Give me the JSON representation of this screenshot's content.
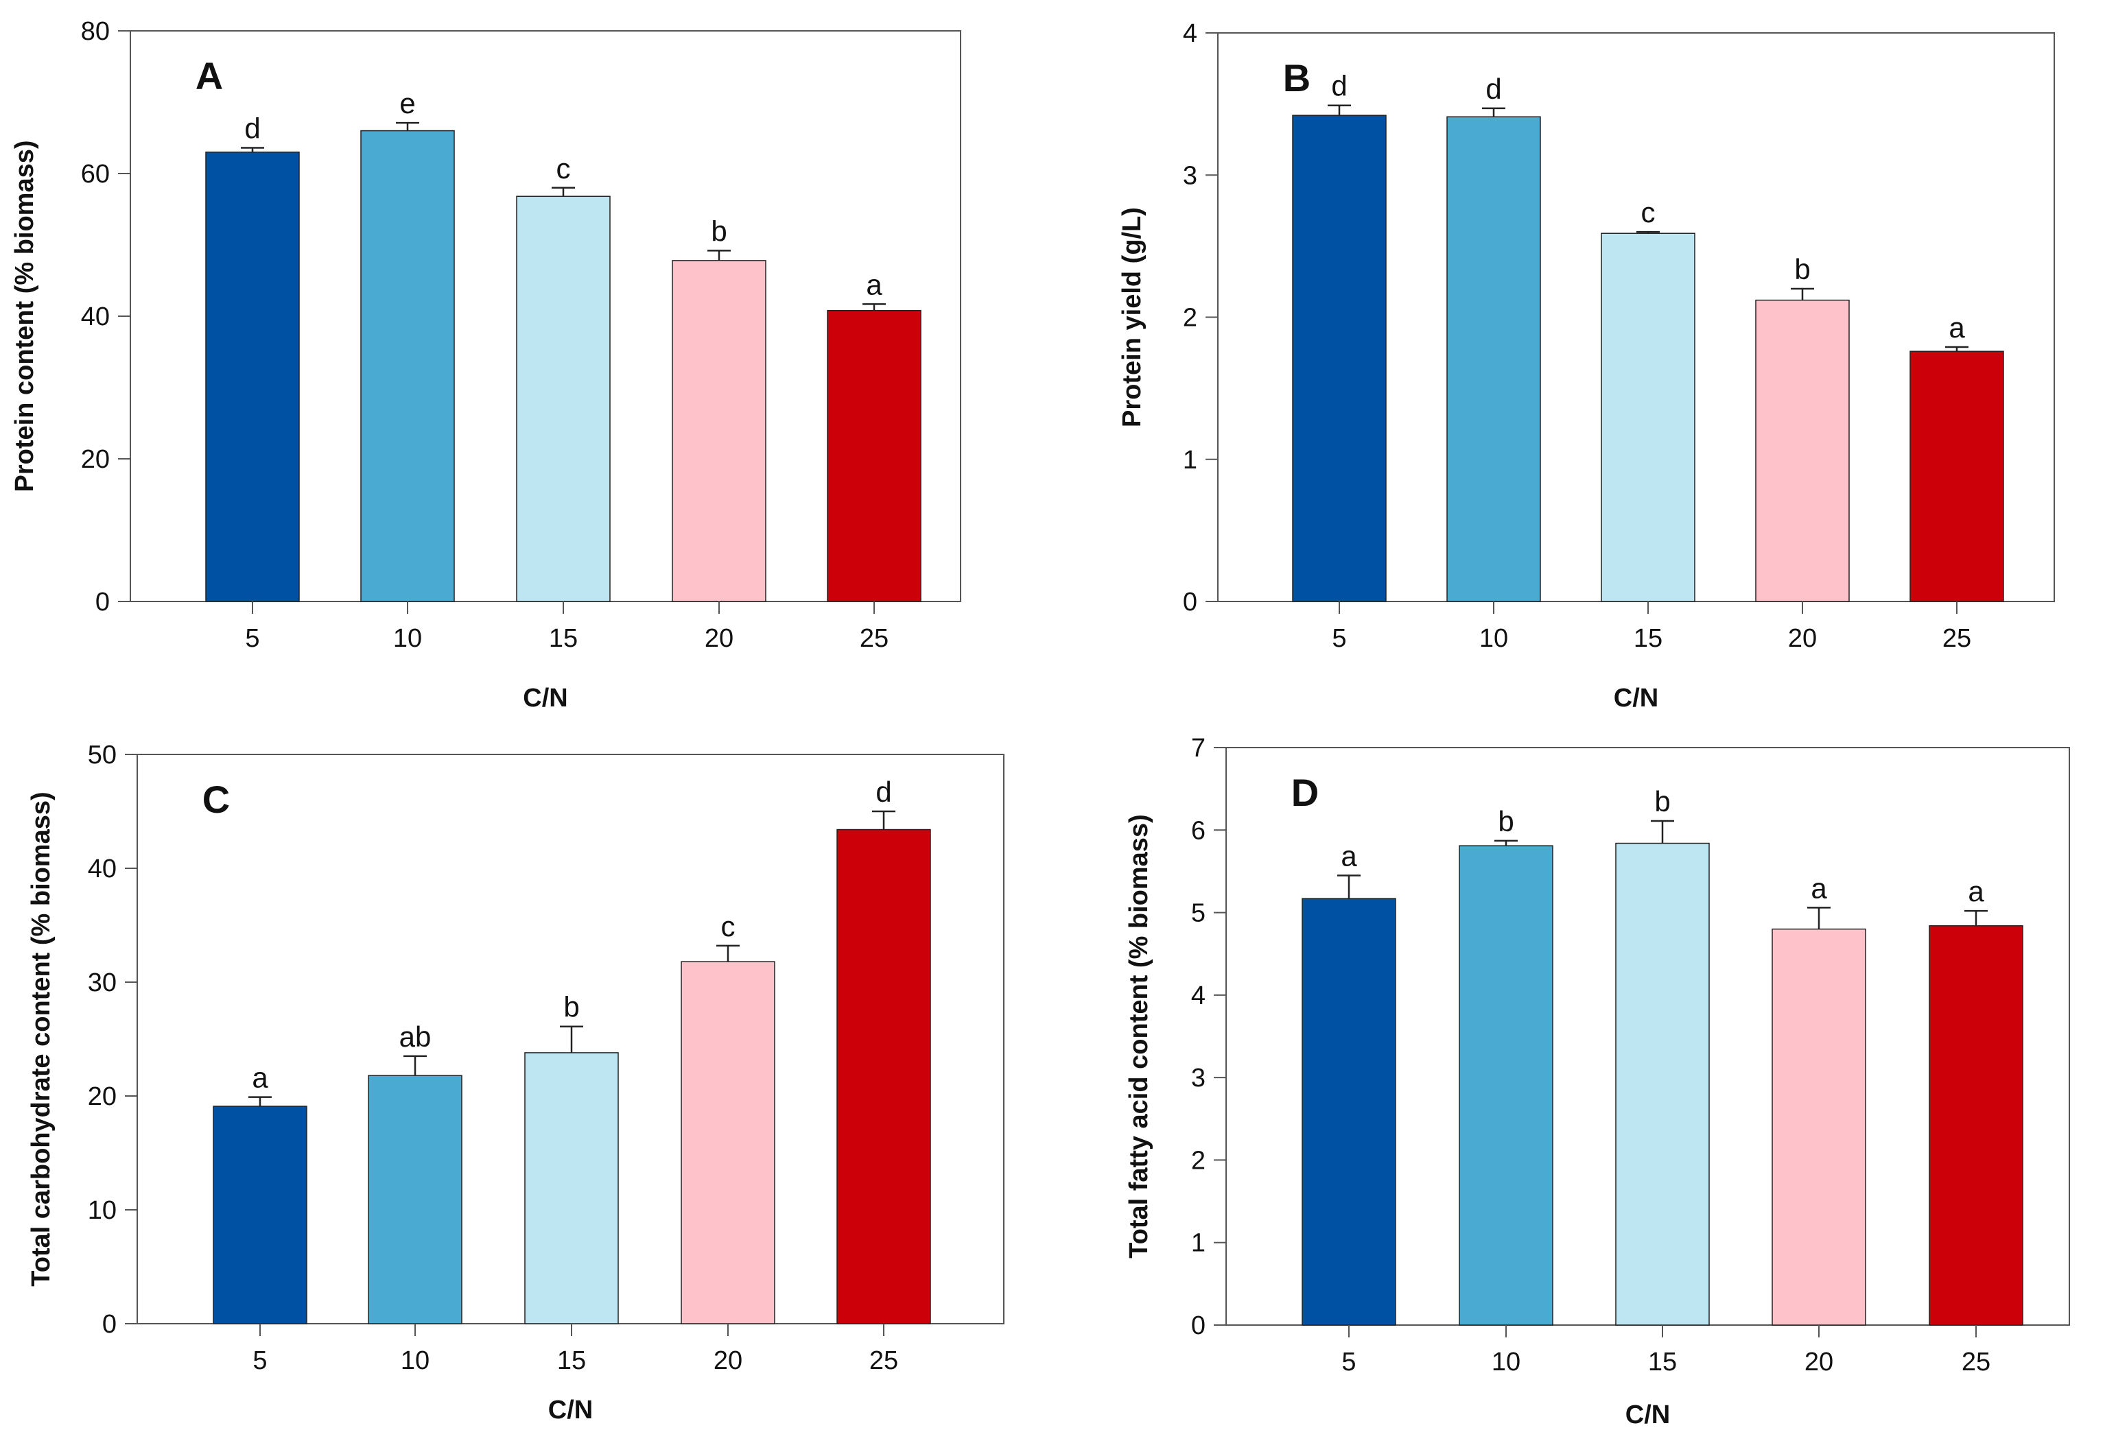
{
  "colors": {
    "bar_colors": [
      "#0050a4",
      "#4aaad2",
      "#bde6f2",
      "#fec2cb",
      "#cc0008"
    ],
    "frame": "#555555",
    "bar_edge": "#222222"
  },
  "chart_data": [
    {
      "type": "bar",
      "panel": "A",
      "categories": [
        "5",
        "10",
        "15",
        "20",
        "25"
      ],
      "values": [
        63,
        66,
        56.8,
        47.8,
        40.8
      ],
      "errors": [
        0.6,
        1.1,
        1.2,
        1.4,
        0.9
      ],
      "significance": [
        "d",
        "e",
        "c",
        "b",
        "a"
      ],
      "xlabel": "C/N",
      "ylabel": "Protein content  (% biomass)",
      "ylim": [
        0,
        80
      ],
      "yticks": [
        "0",
        "20",
        "40",
        "60",
        "80"
      ]
    },
    {
      "type": "bar",
      "panel": "B",
      "categories": [
        "5",
        "10",
        "15",
        "20",
        "25"
      ],
      "values": [
        3.42,
        3.41,
        2.59,
        2.12,
        1.76
      ],
      "errors": [
        0.07,
        0.06,
        0.01,
        0.08,
        0.03
      ],
      "significance": [
        "d",
        "d",
        "c",
        "b",
        "a"
      ],
      "xlabel": "C/N",
      "ylabel": "Protein yield (g/L)",
      "ylim": [
        0,
        4
      ],
      "yticks": [
        "0",
        "1",
        "2",
        "3",
        "4"
      ]
    },
    {
      "type": "bar",
      "panel": "C",
      "categories": [
        "5",
        "10",
        "15",
        "20",
        "25"
      ],
      "values": [
        19.1,
        21.8,
        23.8,
        31.8,
        43.4
      ],
      "errors": [
        0.8,
        1.7,
        2.3,
        1.4,
        1.6
      ],
      "significance": [
        "a",
        "ab",
        "b",
        "c",
        "d"
      ],
      "xlabel": "C/N",
      "ylabel": "Total carbohydrate content (% biomass)",
      "ylim": [
        0,
        50
      ],
      "yticks": [
        "0",
        "10",
        "20",
        "30",
        "40",
        "50"
      ]
    },
    {
      "type": "bar",
      "panel": "D",
      "categories": [
        "5",
        "10",
        "15",
        "20",
        "25"
      ],
      "values": [
        5.17,
        5.81,
        5.84,
        4.8,
        4.84
      ],
      "errors": [
        0.28,
        0.06,
        0.27,
        0.26,
        0.18
      ],
      "significance": [
        "a",
        "b",
        "b",
        "a",
        "a"
      ],
      "xlabel": "C/N",
      "ylabel": "Total fatty acid content (% biomass)",
      "ylim": [
        0,
        7
      ],
      "yticks": [
        "0",
        "1",
        "2",
        "3",
        "4",
        "5",
        "6",
        "7"
      ]
    }
  ]
}
